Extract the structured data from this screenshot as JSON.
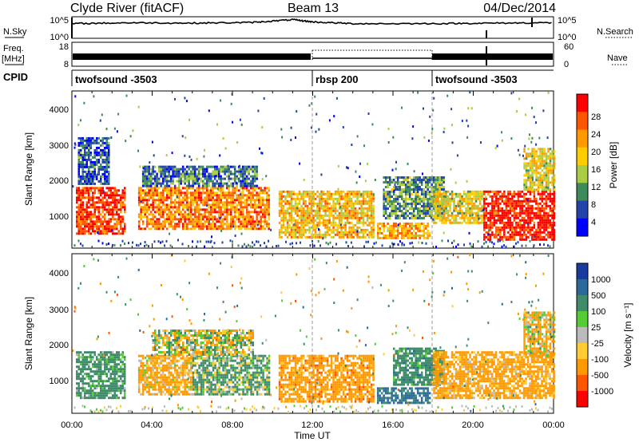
{
  "header": {
    "title_left": "Clyde River (fitACF)",
    "title_center": "Beam 13",
    "title_right": "04/Dec/2014"
  },
  "noise_panel": {
    "label_left": "N.Sky",
    "label_right": "N.Search",
    "left_ticks": [
      "10^5",
      "10^0"
    ],
    "right_ticks": [
      "10^5",
      "10^0"
    ]
  },
  "freq_panel": {
    "label_left_top": "Freq.",
    "label_left_unit": "[MHz]",
    "label_right": "Nave",
    "left_ticks": [
      "18",
      "8"
    ],
    "right_ticks": [
      "60",
      "0"
    ]
  },
  "cpid_panel": {
    "label": "CPID",
    "segments": [
      {
        "text": "twofsound -3503",
        "start_hour": 0
      },
      {
        "text": "rbsp 200",
        "start_hour": 12
      },
      {
        "text": "twofsound -3503",
        "start_hour": 18
      }
    ]
  },
  "power_colorbar": {
    "label": "Power [dB]",
    "ticks": [
      "28",
      "24",
      "20",
      "16",
      "12",
      "8",
      "4"
    ],
    "colors": [
      "#ff0000",
      "#ff5500",
      "#ff9900",
      "#ffcc00",
      "#aacc44",
      "#3d8a5a",
      "#2244aa",
      "#0000ff"
    ]
  },
  "velocity_colorbar": {
    "label": "Velocity [m s⁻¹]",
    "ticks": [
      "1000",
      "500",
      "100",
      "25",
      "-25",
      "-100",
      "-500",
      "-1000"
    ],
    "colors": [
      "#1a3aa0",
      "#2a6a9a",
      "#3f8c6a",
      "#55cc33",
      "#bbbbbb",
      "#ffcc33",
      "#ff9900",
      "#ff5500",
      "#ff0000"
    ]
  },
  "x_axis": {
    "label": "Time UT",
    "ticks": [
      "00:00",
      "04:00",
      "08:00",
      "12:00",
      "16:00",
      "20:00",
      "00:00"
    ]
  },
  "chart_data": [
    {
      "type": "heatmap",
      "name": "power",
      "ylabel": "Slant Range [km]",
      "xlabel": "",
      "y_ticks": [
        "1000",
        "2000",
        "3000",
        "4000"
      ],
      "xlim_hours": [
        0,
        24
      ],
      "ylim_km": [
        180,
        4600
      ],
      "colorbar_label": "Power [dB]",
      "colorbar_range_db": [
        0,
        30
      ],
      "echo_regions": [
        {
          "t0": 0.2,
          "t1": 2.6,
          "r0": 600,
          "r1": 1900,
          "level": 26
        },
        {
          "t0": 0.3,
          "t1": 1.8,
          "r0": 2000,
          "r1": 3300,
          "level": 6
        },
        {
          "t0": 3.3,
          "t1": 9.8,
          "r0": 700,
          "r1": 1900,
          "level": 22
        },
        {
          "t0": 3.5,
          "t1": 9.2,
          "r0": 1900,
          "r1": 2500,
          "level": 8
        },
        {
          "t0": 10.3,
          "t1": 15.0,
          "r0": 500,
          "r1": 1800,
          "level": 18
        },
        {
          "t0": 15.2,
          "t1": 17.8,
          "r0": 450,
          "r1": 900,
          "level": 20
        },
        {
          "t0": 15.5,
          "t1": 18.5,
          "r0": 1000,
          "r1": 2200,
          "level": 10
        },
        {
          "t0": 18.0,
          "t1": 20.5,
          "r0": 900,
          "r1": 1800,
          "level": 16
        },
        {
          "t0": 20.5,
          "t1": 24.0,
          "r0": 400,
          "r1": 1800,
          "level": 28
        },
        {
          "t0": 22.5,
          "t1": 24.0,
          "r0": 1800,
          "r1": 3000,
          "level": 16
        }
      ]
    },
    {
      "type": "heatmap",
      "name": "velocity",
      "ylabel": "Slant Range [km]",
      "xlabel": "Time UT",
      "y_ticks": [
        "1000",
        "2000",
        "3000",
        "4000"
      ],
      "xlim_hours": [
        0,
        24
      ],
      "ylim_km": [
        180,
        4600
      ],
      "colorbar_label": "Velocity [m s⁻¹]",
      "colorbar_range_ms": [
        -1000,
        1000
      ],
      "echo_regions": [
        {
          "t0": 0.2,
          "t1": 2.6,
          "r0": 600,
          "r1": 1900,
          "level": 250
        },
        {
          "t0": 3.3,
          "t1": 6.0,
          "r0": 700,
          "r1": 1800,
          "level": -200
        },
        {
          "t0": 6.0,
          "t1": 9.8,
          "r0": 700,
          "r1": 1800,
          "level": 150
        },
        {
          "t0": 4.0,
          "t1": 9.0,
          "r0": 1800,
          "r1": 2500,
          "level": 0
        },
        {
          "t0": 10.3,
          "t1": 15.0,
          "r0": 500,
          "r1": 1800,
          "level": -300
        },
        {
          "t0": 15.2,
          "t1": 17.8,
          "r0": 450,
          "r1": 900,
          "level": 600
        },
        {
          "t0": 16.0,
          "t1": 18.5,
          "r0": 1000,
          "r1": 2000,
          "level": 300
        },
        {
          "t0": 18.0,
          "t1": 24.0,
          "r0": 600,
          "r1": 1900,
          "level": -250
        },
        {
          "t0": 22.5,
          "t1": 24.0,
          "r0": 1800,
          "r1": 3000,
          "level": -100
        }
      ]
    },
    {
      "type": "line",
      "name": "sky-noise",
      "y_scale": "log",
      "ylim": [
        1,
        100000
      ],
      "x": [
        0,
        3,
        6,
        9,
        11,
        12,
        14,
        18,
        21,
        24
      ],
      "y": [
        3000,
        5000,
        4000,
        6000,
        30000,
        8000,
        3000,
        3000,
        4000,
        5000
      ]
    }
  ]
}
